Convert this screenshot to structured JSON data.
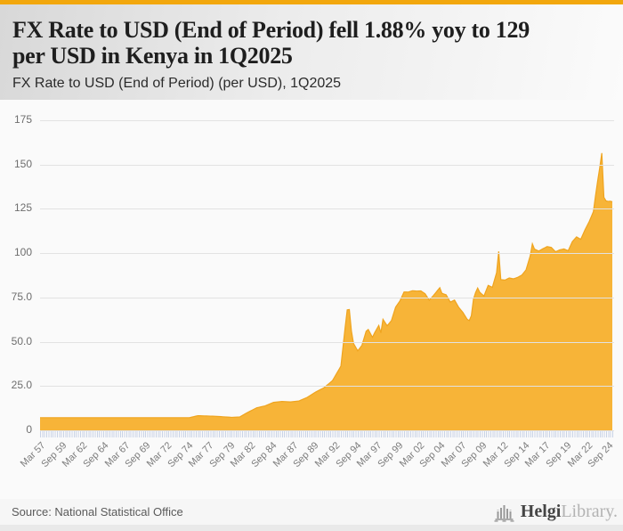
{
  "header": {
    "title_lines": [
      "FX Rate to USD (End of Period) fell 1.88% yoy to 129",
      "per USD in Kenya in 1Q2025"
    ],
    "subtitle": "FX Rate to USD (End of Period) (per USD), 1Q2025"
  },
  "footer": {
    "source": "Source: National Statistical Office",
    "logo_primary": "Helgi",
    "logo_secondary": "Library."
  },
  "theme": {
    "accent_bar": "#F2A70D",
    "area_fill": "#F7B438",
    "area_stroke": "#EFA41F",
    "grid_line": "#E2E2E2",
    "tick_color": "#C9D3E6",
    "logo_primary_color": "#454545",
    "logo_secondary_color": "#B3B3B3"
  },
  "chart_data": {
    "type": "area",
    "title": "FX Rate to USD (End of Period) (per USD), 1Q2025",
    "xlabel": "",
    "ylabel": "",
    "country": "Kenya",
    "frequency": "quarterly",
    "x_range": [
      "1957Q1",
      "2025Q1"
    ],
    "ylim": [
      0,
      175
    ],
    "grid": true,
    "legend": false,
    "y_axis": {
      "tick_labels": [
        "175",
        "150",
        "125",
        "100",
        "75.0",
        "50.0",
        "25.0",
        "0"
      ],
      "tick_values": [
        175,
        150,
        125,
        100,
        75,
        50,
        25,
        0
      ]
    },
    "x_axis": {
      "tick_labels": [
        "Mar 57",
        "Sep 59",
        "Mar 62",
        "Sep 64",
        "Mar 67",
        "Sep 69",
        "Mar 72",
        "Sep 74",
        "Mar 77",
        "Sep 79",
        "Mar 82",
        "Sep 84",
        "Mar 87",
        "Sep 89",
        "Mar 92",
        "Sep 94",
        "Mar 97",
        "Sep 99",
        "Mar 02",
        "Sep 04",
        "Mar 07",
        "Sep 09",
        "Mar 12",
        "Sep 14",
        "Mar 17",
        "Sep 19",
        "Mar 22",
        "Sep 24"
      ],
      "quarters_between_labels": 10,
      "minor_ticks": "every quarter"
    },
    "highlights": {
      "latest_period": "1Q2025",
      "latest_value": 129,
      "yoy_change_pct": -1.88,
      "peak_value": 157,
      "peak_period": "4Q2023"
    },
    "series": [
      {
        "name": "FX Rate to USD (End of Period), per USD",
        "note": "anchor points read from chart; values between anchors interpolated linearly (quarterly)",
        "anchor_points": [
          [
            "1957Q1",
            7.14
          ],
          [
            "1974Q4",
            7.14
          ],
          [
            "1975Q4",
            8.26
          ],
          [
            "1977Q4",
            7.95
          ],
          [
            "1979Q4",
            7.33
          ],
          [
            "1980Q4",
            7.57
          ],
          [
            "1981Q2",
            9.0
          ],
          [
            "1981Q4",
            10.29
          ],
          [
            "1982Q4",
            12.73
          ],
          [
            "1983Q4",
            13.8
          ],
          [
            "1984Q4",
            15.78
          ],
          [
            "1985Q4",
            16.28
          ],
          [
            "1986Q4",
            16.04
          ],
          [
            "1987Q4",
            16.52
          ],
          [
            "1988Q4",
            18.6
          ],
          [
            "1989Q4",
            21.6
          ],
          [
            "1990Q4",
            24.08
          ],
          [
            "1991Q4",
            28.07
          ],
          [
            "1992Q4",
            36.22
          ],
          [
            "1993Q2",
            58.0
          ],
          [
            "1993Q3",
            68.0
          ],
          [
            "1993Q4",
            68.16
          ],
          [
            "1994Q1",
            56.0
          ],
          [
            "1994Q2",
            49.0
          ],
          [
            "1994Q4",
            44.84
          ],
          [
            "1995Q2",
            48.0
          ],
          [
            "1995Q4",
            55.94
          ],
          [
            "1996Q1",
            56.9
          ],
          [
            "1996Q3",
            52.5
          ],
          [
            "1996Q4",
            55.02
          ],
          [
            "1997Q2",
            59.2
          ],
          [
            "1997Q3",
            55.0
          ],
          [
            "1997Q4",
            62.68
          ],
          [
            "1998Q2",
            59.0
          ],
          [
            "1998Q4",
            61.91
          ],
          [
            "1999Q2",
            69.5
          ],
          [
            "1999Q4",
            72.93
          ],
          [
            "2000Q2",
            78.1
          ],
          [
            "2000Q4",
            78.04
          ],
          [
            "2001Q2",
            78.8
          ],
          [
            "2001Q4",
            78.6
          ],
          [
            "2002Q2",
            78.7
          ],
          [
            "2002Q4",
            77.07
          ],
          [
            "2003Q2",
            73.5
          ],
          [
            "2003Q4",
            76.14
          ],
          [
            "2004Q3",
            80.5
          ],
          [
            "2004Q4",
            77.34
          ],
          [
            "2005Q2",
            76.5
          ],
          [
            "2005Q4",
            72.37
          ],
          [
            "2006Q2",
            73.5
          ],
          [
            "2006Q4",
            69.4
          ],
          [
            "2007Q2",
            66.5
          ],
          [
            "2007Q4",
            62.68
          ],
          [
            "2008Q1",
            61.9
          ],
          [
            "2008Q2",
            64.7
          ],
          [
            "2008Q3",
            74.0
          ],
          [
            "2008Q4",
            77.71
          ],
          [
            "2009Q1",
            80.3
          ],
          [
            "2009Q2",
            77.9
          ],
          [
            "2009Q4",
            75.82
          ],
          [
            "2010Q2",
            81.8
          ],
          [
            "2010Q4",
            80.75
          ],
          [
            "2011Q2",
            89.0
          ],
          [
            "2011Q3",
            100.97
          ],
          [
            "2011Q4",
            85.07
          ],
          [
            "2012Q2",
            84.8
          ],
          [
            "2012Q4",
            86.0
          ],
          [
            "2013Q2",
            85.5
          ],
          [
            "2013Q4",
            86.31
          ],
          [
            "2014Q2",
            87.6
          ],
          [
            "2014Q4",
            90.6
          ],
          [
            "2015Q2",
            98.6
          ],
          [
            "2015Q3",
            105.28
          ],
          [
            "2015Q4",
            102.31
          ],
          [
            "2016Q2",
            101.2
          ],
          [
            "2016Q4",
            102.49
          ],
          [
            "2017Q2",
            103.7
          ],
          [
            "2017Q4",
            103.23
          ],
          [
            "2018Q2",
            100.8
          ],
          [
            "2018Q4",
            101.85
          ],
          [
            "2019Q2",
            102.4
          ],
          [
            "2019Q4",
            101.34
          ],
          [
            "2020Q2",
            106.5
          ],
          [
            "2020Q4",
            109.17
          ],
          [
            "2021Q2",
            107.8
          ],
          [
            "2021Q4",
            113.14
          ],
          [
            "2022Q2",
            117.8
          ],
          [
            "2022Q4",
            123.37
          ],
          [
            "2023Q1",
            132.3
          ],
          [
            "2023Q2",
            140.5
          ],
          [
            "2023Q3",
            148.1
          ],
          [
            "2023Q4",
            156.5
          ],
          [
            "2024Q1",
            131.5
          ],
          [
            "2024Q2",
            129.5
          ],
          [
            "2024Q3",
            129.2
          ],
          [
            "2024Q4",
            129.3
          ],
          [
            "2025Q1",
            129.0
          ]
        ]
      }
    ]
  }
}
